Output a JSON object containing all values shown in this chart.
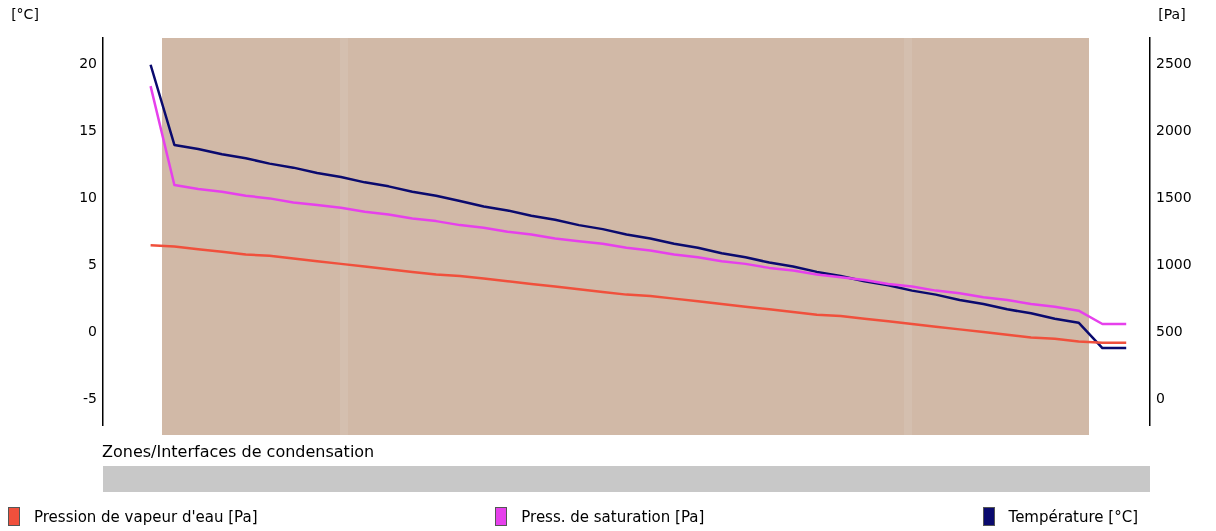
{
  "chart_data": {
    "type": "line",
    "ylabel": "[°C]",
    "y2label": "[Pa]",
    "categories": [
      null,
      null,
      null,
      null,
      null,
      null,
      null,
      null,
      null,
      null,
      null,
      null,
      null,
      null,
      null,
      null,
      null,
      null,
      null,
      null,
      null,
      null,
      null,
      null,
      null,
      null,
      null,
      null,
      null,
      null,
      null,
      null,
      null,
      null,
      null,
      null,
      null,
      null,
      null,
      null,
      null,
      null,
      null,
      null,
      null
    ],
    "series": [
      {
        "name": "Pression de vapeur d'eau [Pa]",
        "color": "#f0503c",
        "axis": "y2",
        "values": [
          null,
          null,
          1150,
          1140,
          1120,
          1100,
          1080,
          1070,
          1050,
          1030,
          1010,
          990,
          970,
          950,
          930,
          920,
          900,
          880,
          860,
          840,
          820,
          800,
          780,
          770,
          750,
          730,
          710,
          690,
          670,
          650,
          630,
          620,
          600,
          580,
          560,
          540,
          520,
          500,
          480,
          460,
          450,
          430,
          420,
          420,
          null
        ]
      },
      {
        "name": "Press. de saturation [Pa]",
        "color": "#e640ec",
        "axis": "y2",
        "values": [
          null,
          null,
          2340,
          1600,
          1570,
          1550,
          1520,
          1500,
          1470,
          1450,
          1430,
          1400,
          1380,
          1350,
          1330,
          1300,
          1280,
          1250,
          1230,
          1200,
          1180,
          1160,
          1130,
          1110,
          1080,
          1060,
          1030,
          1010,
          980,
          960,
          930,
          910,
          890,
          860,
          840,
          810,
          790,
          760,
          740,
          710,
          690,
          660,
          560,
          560,
          null
        ]
      },
      {
        "name": "Température [°C]",
        "color": "#0a0a6e",
        "axis": "y",
        "values": [
          null,
          null,
          20,
          14.0,
          13.7,
          13.3,
          13.0,
          12.6,
          12.3,
          11.9,
          11.6,
          11.2,
          10.9,
          10.5,
          10.2,
          9.8,
          9.4,
          9.1,
          8.7,
          8.4,
          8.0,
          7.7,
          7.3,
          7.0,
          6.6,
          6.3,
          5.9,
          5.6,
          5.2,
          4.9,
          4.5,
          4.2,
          3.8,
          3.5,
          3.1,
          2.8,
          2.4,
          2.1,
          1.7,
          1.4,
          1.0,
          0.7,
          -1.2,
          -1.2,
          null
        ]
      }
    ],
    "ylim": [
      -7,
      22
    ],
    "yticks": [
      -5,
      0,
      5,
      10,
      15,
      20
    ],
    "y2lim": [
      -200,
      2700
    ],
    "y2ticks": [
      0,
      500,
      1000,
      1500,
      2000,
      2500
    ],
    "grid": false,
    "legend": "bottom",
    "marker": "none",
    "line_style": "solid",
    "annotations": [
      "Zones/Interfaces de condensation"
    ]
  }
}
